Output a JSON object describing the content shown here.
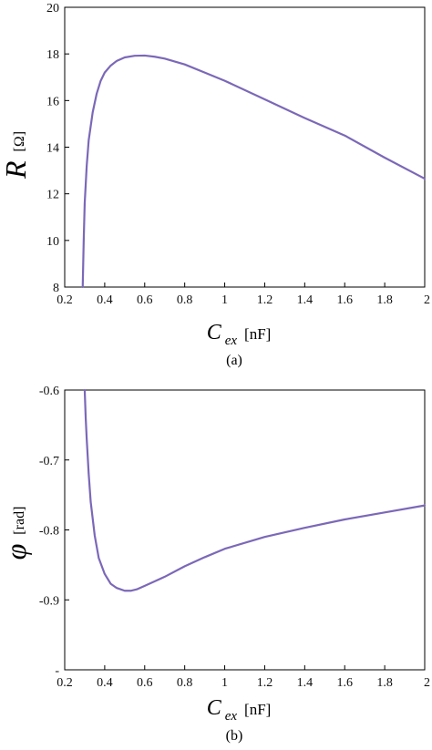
{
  "chart_data": [
    {
      "type": "line",
      "panel_label": "(a)",
      "xlabel": {
        "symbol": "C",
        "subscript": "ex",
        "unit": "[nF]"
      },
      "ylabel": {
        "symbol": "R",
        "unit": "[Ω]"
      },
      "xlim": [
        0.2,
        2.0
      ],
      "ylim": [
        8,
        20
      ],
      "xticks": [
        0.2,
        0.4,
        0.6,
        0.8,
        1,
        1.2,
        1.4,
        1.6,
        1.8,
        2
      ],
      "xtick_labels": [
        "0.2",
        "0.4",
        "0.6",
        "0.8",
        "1",
        "1.2",
        "1.4",
        "1.6",
        "1.8",
        "2"
      ],
      "yticks": [
        8,
        10,
        12,
        14,
        16,
        18,
        20
      ],
      "ytick_labels": [
        "8",
        "10",
        "12",
        "14",
        "16",
        "18",
        "20"
      ],
      "grid": false,
      "line_color": "#7b68b8",
      "series": [
        {
          "x": [
            0.29,
            0.295,
            0.3,
            0.31,
            0.32,
            0.34,
            0.36,
            0.38,
            0.4,
            0.43,
            0.46,
            0.5,
            0.55,
            0.6,
            0.65,
            0.7,
            0.8,
            0.9,
            1.0,
            1.2,
            1.4,
            1.6,
            1.8,
            2.0
          ],
          "y": [
            8.0,
            10.0,
            11.6,
            13.2,
            14.3,
            15.5,
            16.3,
            16.85,
            17.2,
            17.5,
            17.7,
            17.85,
            17.92,
            17.93,
            17.88,
            17.8,
            17.55,
            17.2,
            16.85,
            16.05,
            15.25,
            14.5,
            13.55,
            12.65
          ]
        }
      ]
    },
    {
      "type": "line",
      "panel_label": "(b)",
      "xlabel": {
        "symbol": "C",
        "subscript": "ex",
        "unit": "[nF]"
      },
      "ylabel": {
        "symbol": "φ",
        "unit": "[rad]"
      },
      "xlim": [
        0.2,
        2.0
      ],
      "ylim": [
        -1.0,
        -0.6
      ],
      "xticks": [
        0.2,
        0.4,
        0.6,
        0.8,
        1,
        1.2,
        1.4,
        1.6,
        1.8,
        2
      ],
      "xtick_labels": [
        "0.2",
        "0.4",
        "0.6",
        "0.8",
        "1",
        "1.2",
        "1.4",
        "1.6",
        "1.8",
        "2"
      ],
      "yticks": [
        -1.0,
        -0.9,
        -0.8,
        -0.7,
        -0.6
      ],
      "ytick_labels": [
        "-",
        "-0.9",
        "-0.8",
        "-0.7",
        "-0.6"
      ],
      "grid": false,
      "line_color": "#7b68b8",
      "series": [
        {
          "x": [
            0.3,
            0.305,
            0.31,
            0.32,
            0.33,
            0.35,
            0.37,
            0.4,
            0.43,
            0.46,
            0.5,
            0.53,
            0.56,
            0.6,
            0.7,
            0.8,
            0.9,
            1.0,
            1.2,
            1.4,
            1.6,
            1.8,
            2.0
          ],
          "y": [
            -0.6,
            -0.64,
            -0.67,
            -0.72,
            -0.76,
            -0.808,
            -0.84,
            -0.863,
            -0.877,
            -0.883,
            -0.887,
            -0.887,
            -0.885,
            -0.88,
            -0.867,
            -0.852,
            -0.839,
            -0.827,
            -0.81,
            -0.797,
            -0.785,
            -0.775,
            -0.765
          ]
        }
      ]
    }
  ]
}
